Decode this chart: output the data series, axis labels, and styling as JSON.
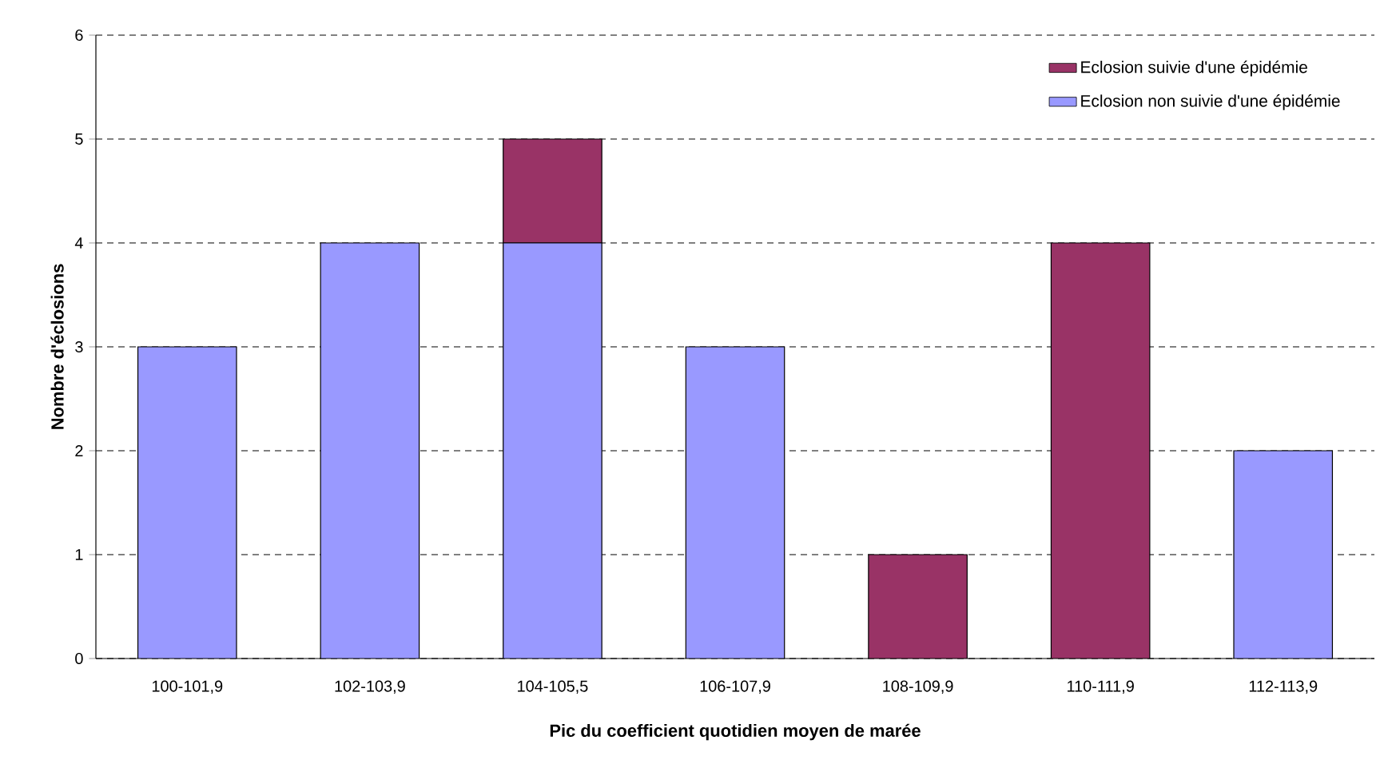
{
  "chart_data": {
    "type": "bar",
    "stacked": true,
    "xlabel": "Pic du coefficient quotidien moyen de marée",
    "ylabel": "Nombre d'éclosions",
    "categories": [
      "100-101,9",
      "102-103,9",
      "104-105,5",
      "106-107,9",
      "108-109,9",
      "110-111,9",
      "112-113,9"
    ],
    "series": [
      {
        "name": "Eclosion non suivie d'une épidémie",
        "color": "#9999ff",
        "values": [
          3,
          4,
          4,
          3,
          null,
          null,
          2
        ]
      },
      {
        "name": "Eclosion suivie d'une épidémie",
        "color": "#993366",
        "values": [
          null,
          null,
          1,
          null,
          1,
          4,
          null
        ]
      }
    ],
    "ylim": [
      0,
      6
    ],
    "yticks": [
      0,
      1,
      2,
      3,
      4,
      5,
      6
    ],
    "grid": "y",
    "legend": "top right"
  }
}
